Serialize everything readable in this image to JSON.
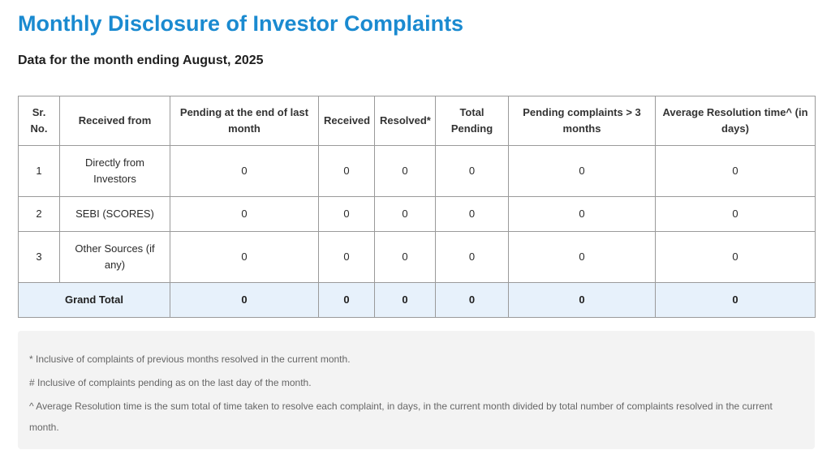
{
  "page": {
    "title": "Monthly Disclosure of Investor Complaints",
    "subtitle": "Data for the month ending August, 2025"
  },
  "table": {
    "headers": [
      "Sr. No.",
      "Received from",
      "Pending at the end of last month",
      "Received",
      "Resolved*",
      "Total Pending",
      "Pending complaints > 3 months",
      "Average Resolution time^ (in days)"
    ],
    "rows": [
      {
        "sr": "1",
        "source": "Directly from Investors",
        "pending_last": "0",
        "received": "0",
        "resolved": "0",
        "total_pending": "0",
        "pending_3m": "0",
        "avg_time": "0"
      },
      {
        "sr": "2",
        "source": "SEBI (SCORES)",
        "pending_last": "0",
        "received": "0",
        "resolved": "0",
        "total_pending": "0",
        "pending_3m": "0",
        "avg_time": "0"
      },
      {
        "sr": "3",
        "source": "Other Sources (if any)",
        "pending_last": "0",
        "received": "0",
        "resolved": "0",
        "total_pending": "0",
        "pending_3m": "0",
        "avg_time": "0"
      }
    ],
    "total": {
      "label": "Grand Total",
      "pending_last": "0",
      "received": "0",
      "resolved": "0",
      "total_pending": "0",
      "pending_3m": "0",
      "avg_time": "0"
    }
  },
  "notes": [
    "* Inclusive of complaints of previous months resolved in the current month.",
    "# Inclusive of complaints pending as on the last day of the month.",
    "^ Average Resolution time is the sum total of time taken to resolve each complaint, in days, in the current month divided by total number of complaints resolved in the current month."
  ],
  "colors": {
    "title": "#1a8ad0",
    "total_row_bg": "#e7f1fb",
    "notes_bg": "#f3f3f3"
  }
}
